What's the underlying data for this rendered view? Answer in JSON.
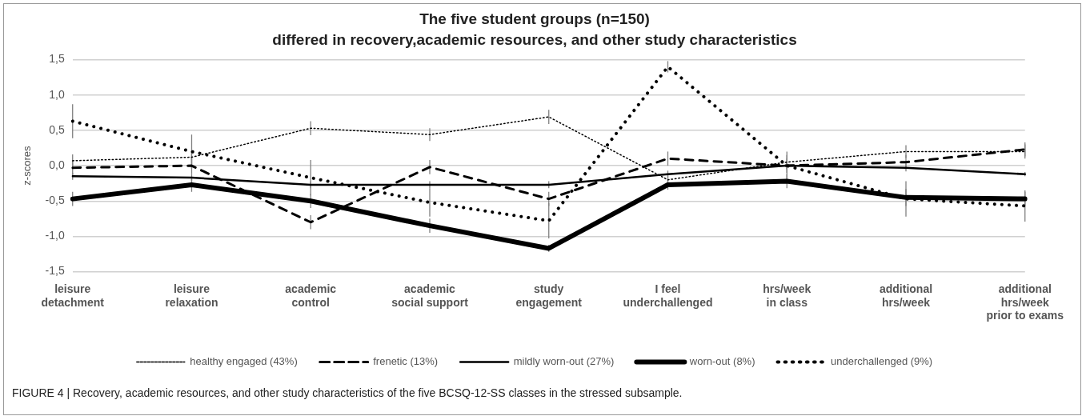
{
  "chart_data": {
    "type": "line",
    "title": "The five student groups (n=150)",
    "subtitle": "differed in recovery,academic resources, and other study characteristics",
    "ylabel": "z-scores",
    "categories": [
      "leisure\ndetachment",
      "leisure\nrelaxation",
      "academic\ncontrol",
      "academic\nsocial support",
      "study\nengagement",
      "I feel\nunderchallenged",
      "hrs/week\nin class",
      "additional\nhrs/week",
      "additional\nhrs/week\nprior to exams"
    ],
    "series": [
      {
        "name": "healthy engaged (43%)",
        "color": "#000000",
        "line_style": "dotted",
        "values": [
          0.07,
          0.12,
          0.53,
          0.44,
          0.69,
          -0.2,
          0.05,
          0.2,
          0.2
        ],
        "errors": [
          0.09,
          0.1,
          0.1,
          0.09,
          0.1,
          0.1,
          0.1,
          0.09,
          0.1
        ]
      },
      {
        "name": "frenetic (13%)",
        "color": "#000000",
        "line_style": "dashed",
        "values": [
          -0.03,
          0.0,
          -0.8,
          -0.02,
          -0.47,
          0.1,
          0.0,
          0.05,
          0.23
        ],
        "errors": [
          0.1,
          0.12,
          0.1,
          0.1,
          0.1,
          0.1,
          0.1,
          0.1,
          0.1
        ]
      },
      {
        "name": "mildly worn-out (27%)",
        "color": "#000000",
        "line_style": "solid",
        "values": [
          -0.15,
          -0.17,
          -0.27,
          -0.27,
          -0.27,
          -0.12,
          0.0,
          -0.03,
          -0.12
        ],
        "errors": [
          0.05,
          0.05,
          0.05,
          0.05,
          0.05,
          0.05,
          0.05,
          0.05,
          0.03
        ]
      },
      {
        "name": "worn-out (8%)",
        "color": "#000000",
        "line_style": "solid",
        "values": [
          -0.47,
          -0.27,
          -0.5,
          -0.85,
          -1.17,
          -0.27,
          -0.22,
          -0.45,
          -0.47
        ],
        "errors": [
          0.1,
          0.1,
          0.1,
          0.1,
          0.05,
          0.07,
          0.1,
          0.12,
          0.1
        ]
      },
      {
        "name": "underchallenged (9%)",
        "color": "#000000",
        "line_style": "dotted",
        "values": [
          0.63,
          0.2,
          -0.17,
          -0.52,
          -0.78,
          1.4,
          0.0,
          -0.47,
          -0.57
        ],
        "errors": [
          0.24,
          0.24,
          0.25,
          0.2,
          0.25,
          0.08,
          0.2,
          0.25,
          0.22
        ]
      }
    ],
    "ylim": [
      -1.5,
      1.5
    ],
    "yticks": [
      {
        "value": -1.5,
        "label": "-1,5"
      },
      {
        "value": -1.0,
        "label": "-1,0"
      },
      {
        "value": -0.5,
        "label": "-0,5"
      },
      {
        "value": 0,
        "label": "0,0"
      },
      {
        "value": 0.5,
        "label": "0,5"
      },
      {
        "value": 1.0,
        "label": "1,0"
      },
      {
        "value": 1.5,
        "label": "1,5"
      }
    ],
    "grid": "y",
    "legend": "bottom",
    "marker": "none",
    "annotations": [
      "FIGURE 4 | Recovery, academic resources, and other study characteristics of the five BCSQ-12-SS classes in the stressed subsample."
    ]
  }
}
